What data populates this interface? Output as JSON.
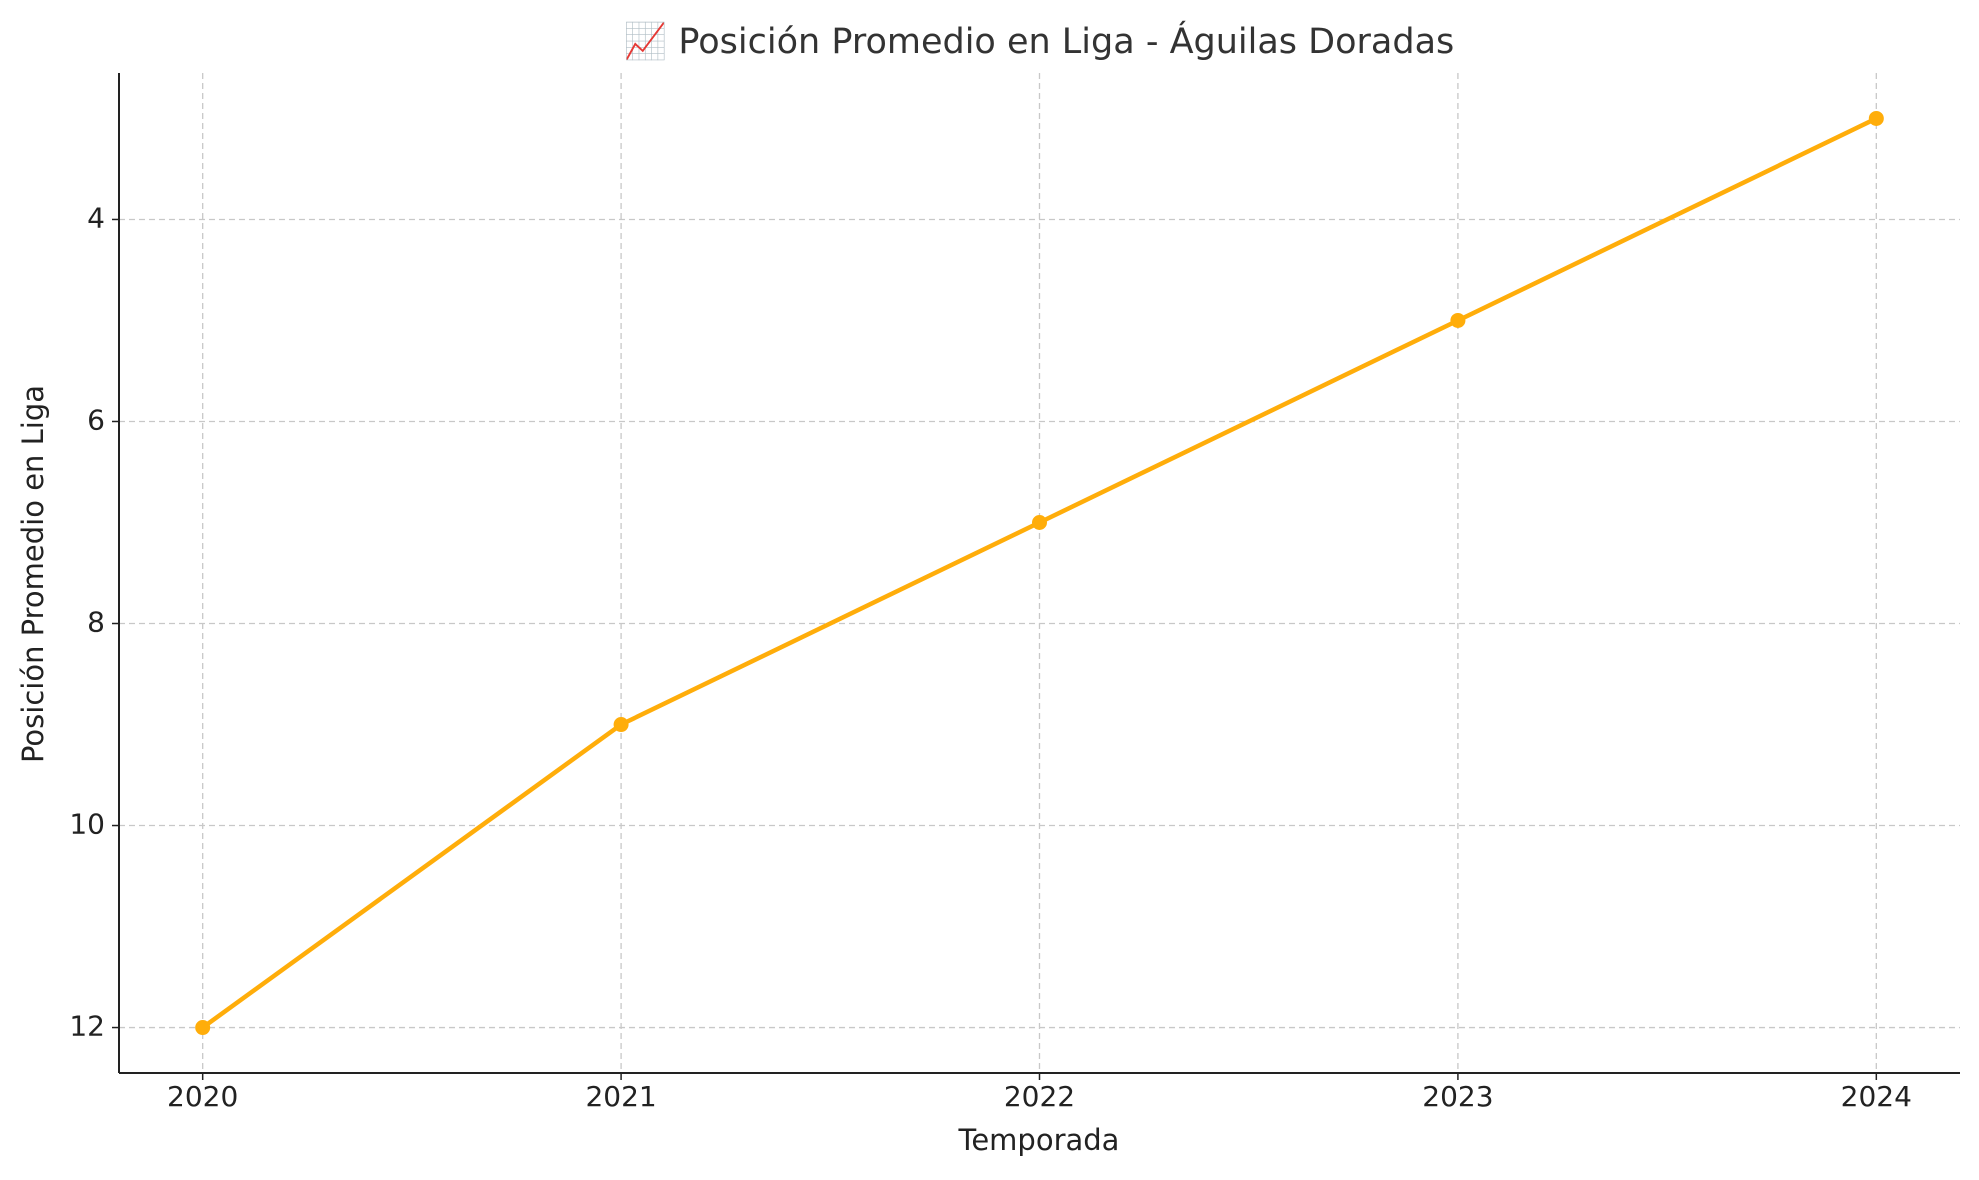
{
  "chart_data": {
    "type": "line",
    "title": "📈 Posición Promedio en Liga - Águilas Doradas",
    "x_label": "Temporada",
    "y_label": "Posición Promedio en Liga",
    "x": [
      2020,
      2021,
      2022,
      2023,
      2024
    ],
    "series": [
      {
        "name": "Águilas Doradas",
        "color": "#ffad0a",
        "values": [
          12,
          9,
          7,
          5,
          3
        ]
      }
    ],
    "xlim": [
      2019.8,
      2024.2
    ],
    "xticks": [
      2020,
      2021,
      2022,
      2023,
      2024
    ],
    "ylim": [
      12.45,
      2.55
    ],
    "yticks": [
      4,
      6,
      8,
      10,
      12
    ],
    "grid": true
  }
}
